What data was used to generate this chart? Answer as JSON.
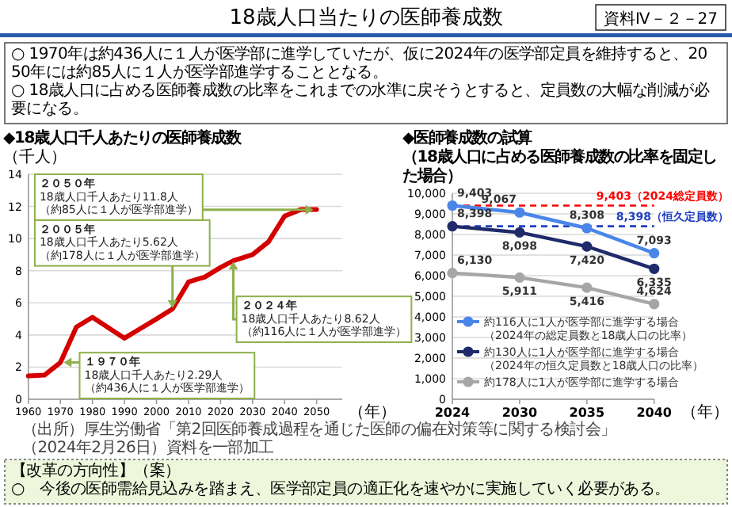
{
  "chart_data": [
    {
      "type": "other",
      "title": "18歳人口当たりの医師養成数",
      "annotations": [
        "資料Ⅳ－２－27",
        "○ 1970年は約436人に１人が医学部に進学していたが、仮に2024年の医学部定員を維持すると、2050年には約85人に１人が医学部進学することとなる。",
        "○ 18歳人口に占める医師養成数の比率をこれまでの水準に戻そうとすると、定員数の大幅な削減が必要になる。",
        "（出所）厚生労働省「第2回医師養成過程を通じた医師の偏在対策等に関する検討会」（2024年2月26日）資料を一部加工",
        "【改革の方向性】（案）",
        "○　今後の医師需給見込みを踏まえ、医学部定員の適正化を速やかに実施していく必要がある。"
      ]
    },
    {
      "type": "line",
      "title": "◆18歳人口千人あたりの医師養成数",
      "ylabel": "（千人）",
      "xlabel": "（年）",
      "x": [
        1960,
        1965,
        1970,
        1975,
        1980,
        1985,
        1990,
        1995,
        2000,
        2005,
        2010,
        2015,
        2020,
        2024,
        2030,
        2035,
        2040,
        2045,
        2050
      ],
      "series": [
        {
          "color": "#d40000",
          "values": [
            1.45,
            1.5,
            2.29,
            4.5,
            5.1,
            4.45,
            3.8,
            4.4,
            5.0,
            5.62,
            7.3,
            7.6,
            8.2,
            8.62,
            9.0,
            9.8,
            11.4,
            11.8,
            11.8
          ]
        }
      ],
      "xlim": [
        1960,
        2058
      ],
      "xticks": [
        1960,
        1970,
        1980,
        1990,
        2000,
        2010,
        2020,
        2030,
        2040,
        2050
      ],
      "ylim": [
        0,
        14
      ],
      "yticks": [
        0,
        2,
        4,
        6,
        8,
        10,
        12,
        14
      ],
      "grid": "y",
      "marker": "none",
      "line_style": "solid",
      "annotations": [
        "１９７０年",
        {
          "text": "18歳人口千人あたり2.29人（約436人に１人が医学部進学）",
          "x": 1970,
          "y": 2.29
        },
        "２００５年",
        {
          "text": "18歳人口千人あたり5.62人（約178人に１人が医学部進学）",
          "x": 2005,
          "y": 5.62
        },
        "２０２４年",
        {
          "text": "18歳人口千人あたり8.62人（約116人に１人が医学部進学）",
          "x": 2024,
          "y": 8.62
        },
        "２０５０年",
        {
          "text": "18歳人口千人あたり11.8人（約85人に１人が医学部進学）",
          "x": 2050,
          "y": 11.8
        }
      ]
    },
    {
      "type": "line",
      "title": "◆医師養成数の試算（18歳人口に占める医師養成数の比率を固定した場合）",
      "xlabel": "（年）",
      "categories": [
        "2024",
        "2030",
        "2035",
        "2040"
      ],
      "series": [
        {
          "name": "約116人に1人が医学部に進学する場合（2024年の総定員数と18歳人口の比率）",
          "color": "#4a86e8",
          "values": [
            9403,
            9067,
            8308,
            7093
          ],
          "value_labels": [
            "9,403",
            "9,067",
            "8,308",
            "7,093"
          ]
        },
        {
          "name": "約130人に1人が医学部に進学する場合（2024年の恒久定員数と18歳人口の比率）",
          "color": "#1f2a6b",
          "values": [
            8398,
            8098,
            7420,
            6335
          ],
          "value_labels": [
            "8,398",
            "8,098",
            "7,420",
            "6,335"
          ]
        },
        {
          "name": "約178人に1人が医学部に進学する場合",
          "color": "#a6a6a6",
          "values": [
            6130,
            5911,
            5416,
            4624
          ],
          "value_labels": [
            "6,130",
            "5,911",
            "5,416",
            "4,624"
          ]
        }
      ],
      "ylim": [
        0,
        10000
      ],
      "yticks": [
        {
          "value": 0,
          "label": "0"
        },
        {
          "value": 1000,
          "label": "1,000"
        },
        {
          "value": 2000,
          "label": "2,000"
        },
        {
          "value": 3000,
          "label": "3,000"
        },
        {
          "value": 4000,
          "label": "4,000"
        },
        {
          "value": 5000,
          "label": "5,000"
        },
        {
          "value": 6000,
          "label": "6,000"
        },
        {
          "value": 7000,
          "label": "7,000"
        },
        {
          "value": 8000,
          "label": "8,000"
        },
        {
          "value": 9000,
          "label": "9,000"
        },
        {
          "value": 10000,
          "label": "10,000"
        }
      ],
      "grid": "y",
      "marker": "circle",
      "line_style": "solid",
      "legend": "bottom",
      "ref_lines": [
        {
          "axis": "y",
          "value": 9403,
          "label": "9,403（2024総定員数）",
          "color": "#ff0000",
          "line_style": "dashed"
        },
        {
          "axis": "y",
          "value": 8398,
          "label": "8,398（恒久定員数）",
          "color": "#2040c0",
          "line_style": "dashed"
        }
      ]
    }
  ]
}
